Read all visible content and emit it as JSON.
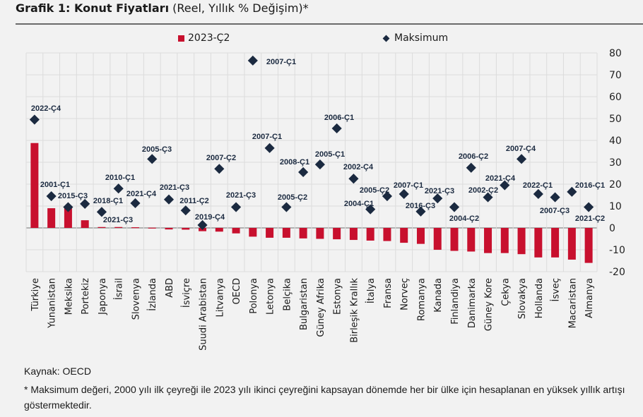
{
  "title": {
    "bold": "Grafik 1: Konut Fiyatları",
    "normal": " (Reel, Yıllık % Değişim)*"
  },
  "footer": {
    "source": "Kaynak: OECD",
    "note": "* Maksimum değeri, 2000 yılı ilk çeyreği ile 2023 yılı ikinci çeyreğini kapsayan dönemde her bir ülke için hesaplanan en yüksek yıllık artışı göstermektedir."
  },
  "colors": {
    "bar": "#c8102e",
    "marker": "#1b2a40",
    "grid": "#dcdcdc"
  },
  "chart_data": {
    "type": "bar",
    "title": "Grafik 1: Konut Fiyatları (Reel, Yıllık % Değişim)*",
    "ylim": [
      -20,
      80
    ],
    "yticks": [
      "80",
      "70",
      "60",
      "50",
      "40",
      "30",
      "20",
      "10",
      "0",
      "-10",
      "-20"
    ],
    "y_axis_side": "right",
    "grid": true,
    "legend_placement": "top",
    "legend": [
      "2023-Ç2",
      "Maksimum"
    ],
    "categories": [
      "Türkiye",
      "Yunanistan",
      "Meksika",
      "Portekiz",
      "Japonya",
      "İsrail",
      "Slovenya",
      "İzlanda",
      "ABD",
      "İsviçre",
      "Suudi Arabistan",
      "Litvanya",
      "OECD",
      "Polonya",
      "Letonya",
      "Belçika",
      "Bulgaristan",
      "Güney Afrika",
      "Estonya",
      "Birleşik Krallık",
      "İtalya",
      "Fransa",
      "Norveç",
      "Romanya",
      "Kanada",
      "Finlandiya",
      "Danimarka",
      "Güney Kore",
      "Çekya",
      "Slovakya",
      "Hollanda",
      "İsveç",
      "Macaristan",
      "Almanya"
    ],
    "series": [
      {
        "name": "2023-Ç2",
        "type": "bar",
        "values": [
          38.8,
          9,
          9,
          3.5,
          0.4,
          0.4,
          0.3,
          0.1,
          -0.7,
          -0.8,
          -1.5,
          -1.7,
          -2.5,
          -4,
          -4.5,
          -4.5,
          -4.8,
          -5,
          -5.2,
          -5.5,
          -5.8,
          -6,
          -6.8,
          -7.3,
          -10,
          -10.5,
          -10.8,
          -11.5,
          -11.5,
          -12,
          -13.5,
          -13.5,
          -14.5,
          -16
        ]
      },
      {
        "name": "Maksimum",
        "type": "scatter",
        "values": [
          49.5,
          14.5,
          9.5,
          11,
          7.3,
          18,
          11.3,
          31.5,
          13,
          8,
          1.3,
          27,
          9.5,
          76.5,
          36.5,
          9.5,
          25.5,
          29,
          45.5,
          22.5,
          8.5,
          14.5,
          15.5,
          7.5,
          13.5,
          9.5,
          27.5,
          14,
          19.5,
          31.5,
          15.5,
          14,
          16.5,
          9.5
        ],
        "labels": [
          "2022-Ç4",
          "2001-Ç1",
          "2015-Ç3",
          "2018-Ç1",
          "2021-Ç3",
          "2010-Ç1",
          "2021-Ç4",
          "2005-Ç3",
          "2021-Ç3",
          "2011-Ç2",
          "2019-Ç4",
          "2007-Ç2",
          "2021-Ç3",
          "2007-Ç1",
          "2007-Ç1",
          "2005-Ç2",
          "2008-Ç1",
          "2005-Ç1",
          "2006-Ç1",
          "2002-Ç4",
          "2004-Ç1",
          "2005-Ç2",
          "2007-Ç1",
          "2016-Ç3",
          "2021-Ç3",
          "2004-Ç2",
          "2006-Ç2",
          "2002-Ç2",
          "2021-Ç4",
          "2007-Ç4",
          "2022-Ç1",
          "2007-Ç3",
          "2016-Ç1",
          "2021-Ç2"
        ]
      }
    ]
  }
}
